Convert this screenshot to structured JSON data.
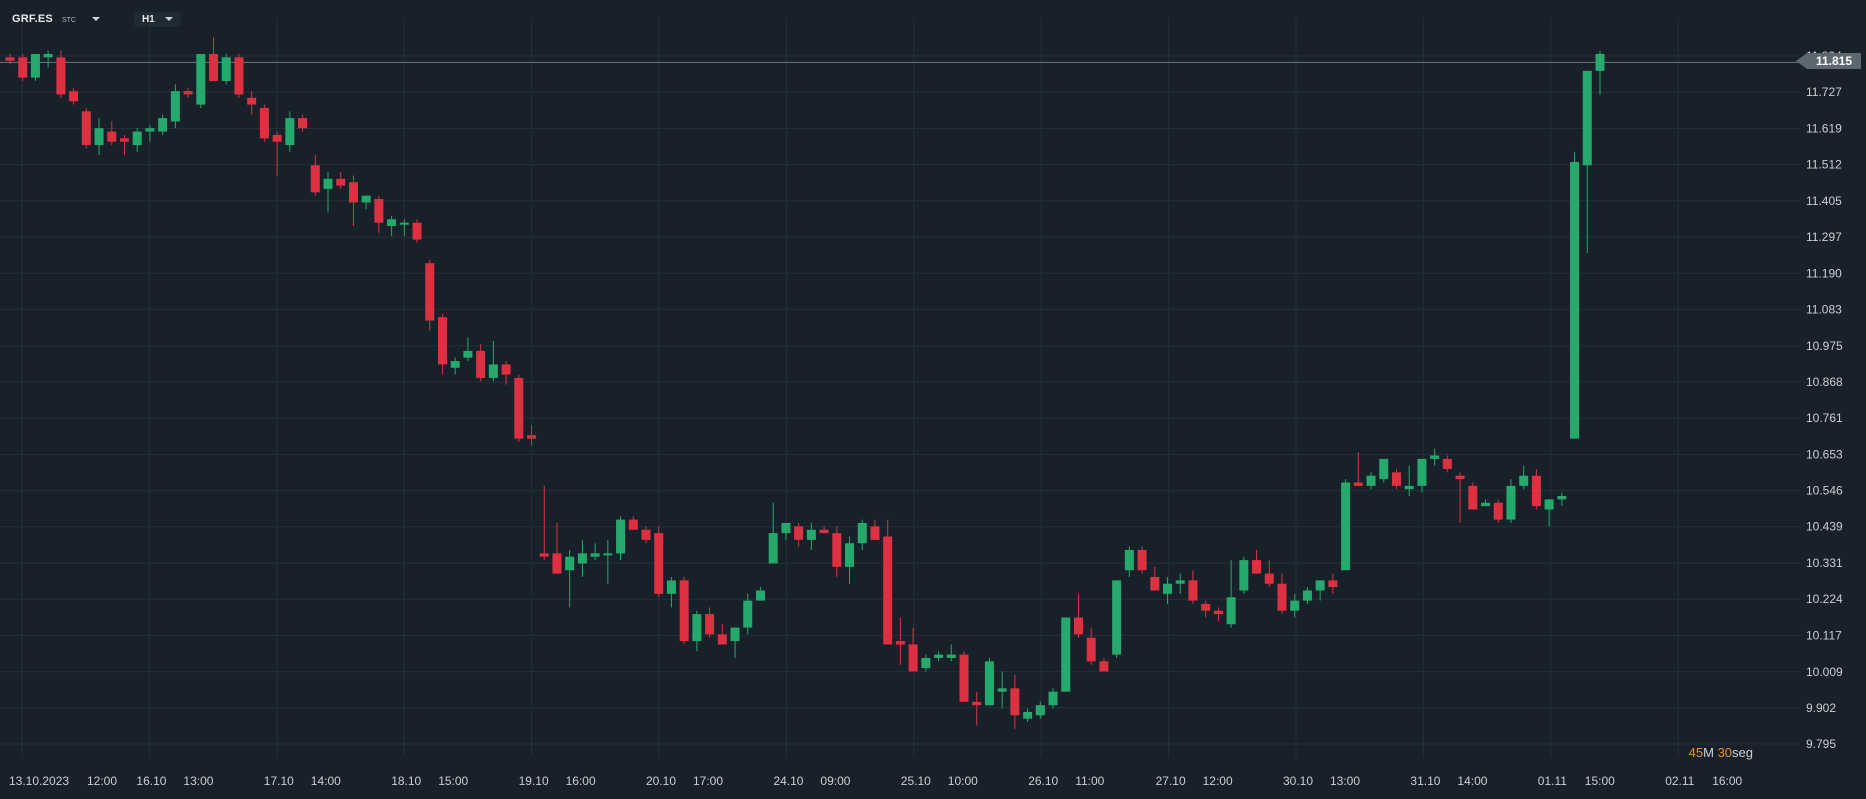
{
  "toolbar": {
    "symbol": "GRF.ES",
    "exchange": "STC",
    "timeframe": "H1"
  },
  "timer": {
    "minutes": "45",
    "minutes_unit": "M",
    "seconds": "30",
    "seconds_unit": "seg"
  },
  "current_price": "11.815",
  "colors": {
    "background": "#18212a",
    "grid": "#243039",
    "bull": "#26a96c",
    "bear": "#dd3142",
    "axis_text": "#c9cfd4",
    "price_line": "#6b7680",
    "timer_accent": "#e8902b"
  },
  "chart_data": {
    "type": "candlestick",
    "title": "",
    "xlabel": "",
    "ylabel": "",
    "ylim": [
      9.76,
      11.92
    ],
    "grid": true,
    "y_ticks": [
      "11.834",
      "11.727",
      "11.619",
      "11.512",
      "11.405",
      "11.297",
      "11.190",
      "11.083",
      "10.975",
      "10.868",
      "10.761",
      "10.653",
      "10.546",
      "10.439",
      "10.331",
      "10.224",
      "10.117",
      "10.009",
      "9.902",
      "9.795"
    ],
    "x_ticks": [
      "13.10.2023",
      "12:00",
      "16.10",
      "13:00",
      "17.10",
      "14:00",
      "18.10",
      "15:00",
      "19.10",
      "16:00",
      "20.10",
      "17:00",
      "24.10",
      "09:00",
      "25.10",
      "10:00",
      "26.10",
      "11:00",
      "27.10",
      "12:00",
      "30.10",
      "13:00",
      "31.10",
      "14:00",
      "01.11",
      "15:00",
      "02.11",
      "16:00"
    ],
    "candles": [
      {
        "o": 11.83,
        "h": 11.84,
        "l": 11.81,
        "c": 11.82
      },
      {
        "o": 11.83,
        "h": 11.84,
        "l": 11.76,
        "c": 11.77
      },
      {
        "o": 11.77,
        "h": 11.84,
        "l": 11.76,
        "c": 11.84
      },
      {
        "o": 11.83,
        "h": 11.85,
        "l": 11.8,
        "c": 11.84
      },
      {
        "o": 11.83,
        "h": 11.85,
        "l": 11.71,
        "c": 11.72
      },
      {
        "o": 11.73,
        "h": 11.74,
        "l": 11.69,
        "c": 11.7
      },
      {
        "o": 11.67,
        "h": 11.68,
        "l": 11.56,
        "c": 11.57
      },
      {
        "o": 11.57,
        "h": 11.65,
        "l": 11.54,
        "c": 11.62
      },
      {
        "o": 11.61,
        "h": 11.64,
        "l": 11.57,
        "c": 11.58
      },
      {
        "o": 11.59,
        "h": 11.6,
        "l": 11.54,
        "c": 11.58
      },
      {
        "o": 11.57,
        "h": 11.62,
        "l": 11.55,
        "c": 11.61
      },
      {
        "o": 11.61,
        "h": 11.63,
        "l": 11.58,
        "c": 11.62
      },
      {
        "o": 11.61,
        "h": 11.66,
        "l": 11.6,
        "c": 11.65
      },
      {
        "o": 11.64,
        "h": 11.75,
        "l": 11.62,
        "c": 11.73
      },
      {
        "o": 11.73,
        "h": 11.74,
        "l": 11.71,
        "c": 11.72
      },
      {
        "o": 11.69,
        "h": 11.84,
        "l": 11.68,
        "c": 11.84
      },
      {
        "o": 11.84,
        "h": 11.89,
        "l": 11.76,
        "c": 11.76
      },
      {
        "o": 11.76,
        "h": 11.84,
        "l": 11.75,
        "c": 11.83
      },
      {
        "o": 11.83,
        "h": 11.84,
        "l": 11.71,
        "c": 11.72
      },
      {
        "o": 11.71,
        "h": 11.73,
        "l": 11.66,
        "c": 11.69
      },
      {
        "o": 11.68,
        "h": 11.69,
        "l": 11.58,
        "c": 11.59
      },
      {
        "o": 11.6,
        "h": 11.61,
        "l": 11.48,
        "c": 11.58
      },
      {
        "o": 11.57,
        "h": 11.67,
        "l": 11.55,
        "c": 11.65
      },
      {
        "o": 11.65,
        "h": 11.66,
        "l": 11.61,
        "c": 11.62
      },
      {
        "o": 11.51,
        "h": 11.54,
        "l": 11.42,
        "c": 11.43
      },
      {
        "o": 11.44,
        "h": 11.49,
        "l": 11.37,
        "c": 11.47
      },
      {
        "o": 11.47,
        "h": 11.49,
        "l": 11.44,
        "c": 11.45
      },
      {
        "o": 11.46,
        "h": 11.48,
        "l": 11.33,
        "c": 11.4
      },
      {
        "o": 11.4,
        "h": 11.42,
        "l": 11.38,
        "c": 11.42
      },
      {
        "o": 11.41,
        "h": 11.42,
        "l": 11.31,
        "c": 11.34
      },
      {
        "o": 11.33,
        "h": 11.36,
        "l": 11.3,
        "c": 11.35
      },
      {
        "o": 11.34,
        "h": 11.35,
        "l": 11.3,
        "c": 11.34
      },
      {
        "o": 11.34,
        "h": 11.35,
        "l": 11.28,
        "c": 11.29
      },
      {
        "o": 11.22,
        "h": 11.23,
        "l": 11.02,
        "c": 11.05
      },
      {
        "o": 11.06,
        "h": 11.07,
        "l": 10.89,
        "c": 10.92
      },
      {
        "o": 10.91,
        "h": 10.94,
        "l": 10.89,
        "c": 10.93
      },
      {
        "o": 10.94,
        "h": 11.0,
        "l": 10.93,
        "c": 10.96
      },
      {
        "o": 10.96,
        "h": 10.98,
        "l": 10.87,
        "c": 10.88
      },
      {
        "o": 10.88,
        "h": 10.99,
        "l": 10.87,
        "c": 10.92
      },
      {
        "o": 10.92,
        "h": 10.93,
        "l": 10.86,
        "c": 10.89
      },
      {
        "o": 10.88,
        "h": 10.89,
        "l": 10.69,
        "c": 10.7
      },
      {
        "o": 10.71,
        "h": 10.74,
        "l": 10.68,
        "c": 10.7
      },
      {
        "o": 10.36,
        "h": 10.56,
        "l": 10.34,
        "c": 10.35
      },
      {
        "o": 10.36,
        "h": 10.45,
        "l": 10.3,
        "c": 10.3
      },
      {
        "o": 10.31,
        "h": 10.37,
        "l": 10.2,
        "c": 10.35
      },
      {
        "o": 10.33,
        "h": 10.4,
        "l": 10.29,
        "c": 10.36
      },
      {
        "o": 10.35,
        "h": 10.39,
        "l": 10.34,
        "c": 10.36
      },
      {
        "o": 10.36,
        "h": 10.4,
        "l": 10.27,
        "c": 10.36
      },
      {
        "o": 10.36,
        "h": 10.47,
        "l": 10.34,
        "c": 10.46
      },
      {
        "o": 10.46,
        "h": 10.47,
        "l": 10.43,
        "c": 10.43
      },
      {
        "o": 10.43,
        "h": 10.44,
        "l": 10.39,
        "c": 10.4
      },
      {
        "o": 10.42,
        "h": 10.44,
        "l": 10.23,
        "c": 10.24
      },
      {
        "o": 10.24,
        "h": 10.29,
        "l": 10.2,
        "c": 10.28
      },
      {
        "o": 10.28,
        "h": 10.29,
        "l": 10.09,
        "c": 10.1
      },
      {
        "o": 10.1,
        "h": 10.19,
        "l": 10.07,
        "c": 10.18
      },
      {
        "o": 10.18,
        "h": 10.2,
        "l": 10.11,
        "c": 10.12
      },
      {
        "o": 10.12,
        "h": 10.15,
        "l": 10.09,
        "c": 10.09
      },
      {
        "o": 10.1,
        "h": 10.14,
        "l": 10.05,
        "c": 10.14
      },
      {
        "o": 10.14,
        "h": 10.24,
        "l": 10.12,
        "c": 10.22
      },
      {
        "o": 10.22,
        "h": 10.26,
        "l": 10.22,
        "c": 10.25
      },
      {
        "o": 10.33,
        "h": 10.51,
        "l": 10.33,
        "c": 10.42
      },
      {
        "o": 10.42,
        "h": 10.45,
        "l": 10.4,
        "c": 10.45
      },
      {
        "o": 10.44,
        "h": 10.45,
        "l": 10.38,
        "c": 10.4
      },
      {
        "o": 10.4,
        "h": 10.45,
        "l": 10.37,
        "c": 10.43
      },
      {
        "o": 10.43,
        "h": 10.44,
        "l": 10.42,
        "c": 10.42
      },
      {
        "o": 10.42,
        "h": 10.44,
        "l": 10.29,
        "c": 10.32
      },
      {
        "o": 10.32,
        "h": 10.41,
        "l": 10.27,
        "c": 10.39
      },
      {
        "o": 10.39,
        "h": 10.46,
        "l": 10.37,
        "c": 10.45
      },
      {
        "o": 10.44,
        "h": 10.46,
        "l": 10.4,
        "c": 10.4
      },
      {
        "o": 10.41,
        "h": 10.46,
        "l": 10.09,
        "c": 10.09
      },
      {
        "o": 10.1,
        "h": 10.17,
        "l": 10.03,
        "c": 10.09
      },
      {
        "o": 10.09,
        "h": 10.14,
        "l": 10.01,
        "c": 10.01
      },
      {
        "o": 10.02,
        "h": 10.06,
        "l": 10.01,
        "c": 10.05
      },
      {
        "o": 10.05,
        "h": 10.07,
        "l": 10.04,
        "c": 10.06
      },
      {
        "o": 10.05,
        "h": 10.09,
        "l": 10.04,
        "c": 10.06
      },
      {
        "o": 10.06,
        "h": 10.07,
        "l": 9.92,
        "c": 9.92
      },
      {
        "o": 9.92,
        "h": 9.95,
        "l": 9.85,
        "c": 9.91
      },
      {
        "o": 9.91,
        "h": 10.05,
        "l": 9.91,
        "c": 10.04
      },
      {
        "o": 9.95,
        "h": 10.01,
        "l": 9.9,
        "c": 9.96
      },
      {
        "o": 9.96,
        "h": 10.0,
        "l": 9.84,
        "c": 9.88
      },
      {
        "o": 9.87,
        "h": 9.9,
        "l": 9.86,
        "c": 9.89
      },
      {
        "o": 9.88,
        "h": 9.92,
        "l": 9.87,
        "c": 9.91
      },
      {
        "o": 9.91,
        "h": 9.96,
        "l": 9.9,
        "c": 9.95
      },
      {
        "o": 9.95,
        "h": 10.17,
        "l": 9.95,
        "c": 10.17
      },
      {
        "o": 10.17,
        "h": 10.24,
        "l": 10.11,
        "c": 10.12
      },
      {
        "o": 10.11,
        "h": 10.14,
        "l": 10.03,
        "c": 10.04
      },
      {
        "o": 10.04,
        "h": 10.05,
        "l": 10.01,
        "c": 10.01
      },
      {
        "o": 10.06,
        "h": 10.28,
        "l": 10.05,
        "c": 10.28
      },
      {
        "o": 10.31,
        "h": 10.38,
        "l": 10.29,
        "c": 10.37
      },
      {
        "o": 10.37,
        "h": 10.38,
        "l": 10.3,
        "c": 10.31
      },
      {
        "o": 10.29,
        "h": 10.32,
        "l": 10.25,
        "c": 10.25
      },
      {
        "o": 10.24,
        "h": 10.29,
        "l": 10.21,
        "c": 10.27
      },
      {
        "o": 10.27,
        "h": 10.3,
        "l": 10.24,
        "c": 10.28
      },
      {
        "o": 10.28,
        "h": 10.31,
        "l": 10.21,
        "c": 10.22
      },
      {
        "o": 10.21,
        "h": 10.22,
        "l": 10.17,
        "c": 10.19
      },
      {
        "o": 10.19,
        "h": 10.2,
        "l": 10.16,
        "c": 10.18
      },
      {
        "o": 10.15,
        "h": 10.34,
        "l": 10.14,
        "c": 10.23
      },
      {
        "o": 10.25,
        "h": 10.35,
        "l": 10.24,
        "c": 10.34
      },
      {
        "o": 10.34,
        "h": 10.37,
        "l": 10.3,
        "c": 10.3
      },
      {
        "o": 10.3,
        "h": 10.34,
        "l": 10.26,
        "c": 10.27
      },
      {
        "o": 10.27,
        "h": 10.3,
        "l": 10.18,
        "c": 10.19
      },
      {
        "o": 10.19,
        "h": 10.24,
        "l": 10.17,
        "c": 10.22
      },
      {
        "o": 10.22,
        "h": 10.26,
        "l": 10.21,
        "c": 10.25
      },
      {
        "o": 10.25,
        "h": 10.28,
        "l": 10.22,
        "c": 10.28
      },
      {
        "o": 10.28,
        "h": 10.3,
        "l": 10.24,
        "c": 10.26
      },
      {
        "o": 10.31,
        "h": 10.58,
        "l": 10.31,
        "c": 10.57
      },
      {
        "o": 10.57,
        "h": 10.66,
        "l": 10.56,
        "c": 10.56
      },
      {
        "o": 10.56,
        "h": 10.6,
        "l": 10.55,
        "c": 10.59
      },
      {
        "o": 10.58,
        "h": 10.64,
        "l": 10.57,
        "c": 10.64
      },
      {
        "o": 10.6,
        "h": 10.61,
        "l": 10.55,
        "c": 10.56
      },
      {
        "o": 10.55,
        "h": 10.62,
        "l": 10.53,
        "c": 10.56
      },
      {
        "o": 10.56,
        "h": 10.64,
        "l": 10.54,
        "c": 10.64
      },
      {
        "o": 10.64,
        "h": 10.67,
        "l": 10.62,
        "c": 10.65
      },
      {
        "o": 10.64,
        "h": 10.65,
        "l": 10.6,
        "c": 10.61
      },
      {
        "o": 10.59,
        "h": 10.6,
        "l": 10.45,
        "c": 10.58
      },
      {
        "o": 10.56,
        "h": 10.57,
        "l": 10.49,
        "c": 10.49
      },
      {
        "o": 10.5,
        "h": 10.52,
        "l": 10.5,
        "c": 10.51
      },
      {
        "o": 10.51,
        "h": 10.52,
        "l": 10.45,
        "c": 10.46
      },
      {
        "o": 10.46,
        "h": 10.58,
        "l": 10.45,
        "c": 10.56
      },
      {
        "o": 10.56,
        "h": 10.62,
        "l": 10.55,
        "c": 10.59
      },
      {
        "o": 10.59,
        "h": 10.61,
        "l": 10.49,
        "c": 10.5
      },
      {
        "o": 10.49,
        "h": 10.52,
        "l": 10.44,
        "c": 10.52
      },
      {
        "o": 10.52,
        "h": 10.54,
        "l": 10.5,
        "c": 10.53
      },
      {
        "o": 10.7,
        "h": 11.55,
        "l": 10.7,
        "c": 11.52
      },
      {
        "o": 11.51,
        "h": 11.79,
        "l": 11.25,
        "c": 11.79
      },
      {
        "o": 11.79,
        "h": 11.85,
        "l": 11.72,
        "c": 11.84
      }
    ]
  }
}
